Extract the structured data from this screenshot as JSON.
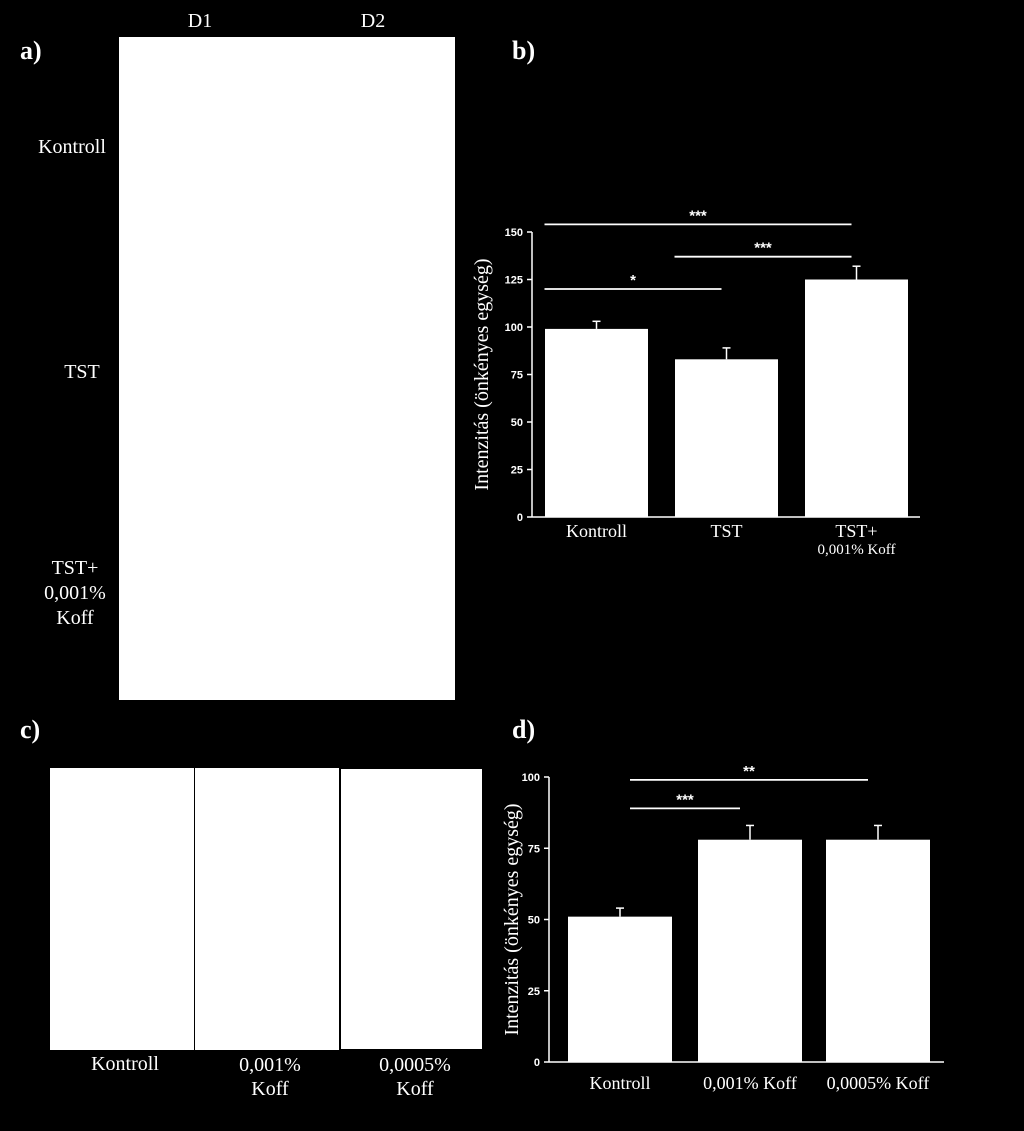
{
  "panel_a": {
    "letter": "a)",
    "columns": [
      "D1",
      "D2"
    ],
    "rows": [
      "Kontroll",
      "TST",
      "TST+\n0,001%\nKoff"
    ]
  },
  "panel_b": {
    "letter": "b)"
  },
  "panel_c": {
    "letter": "c)",
    "labels": [
      "Kontroll",
      "0,001%\nKoff",
      "0,0005%\nKoff"
    ]
  },
  "panel_d": {
    "letter": "d)"
  },
  "chart_data": [
    {
      "type": "bar",
      "panel": "b",
      "ylabel": "Intenzitás (önkényes egység)",
      "xlabel": "",
      "ylim": [
        0,
        150
      ],
      "yticks": [
        0,
        25,
        50,
        75,
        100,
        125,
        150
      ],
      "categories": [
        "Kontroll",
        "TST",
        "TST+\n0,001% Koff"
      ],
      "values": [
        99,
        83,
        125
      ],
      "errors": [
        4,
        6,
        7
      ],
      "significance": [
        {
          "from": 0,
          "to": 1,
          "label": "*",
          "y": 120
        },
        {
          "from": 1,
          "to": 2,
          "label": "***",
          "y": 137
        },
        {
          "from": 0,
          "to": 2,
          "label": "***",
          "y": 154
        }
      ],
      "bar_color": "#ffffff",
      "background": "#000000"
    },
    {
      "type": "bar",
      "panel": "d",
      "ylabel": "Intenzitás (önkényes egység)",
      "xlabel": "",
      "ylim": [
        0,
        100
      ],
      "yticks": [
        0,
        25,
        50,
        75,
        100
      ],
      "categories": [
        "Kontroll",
        "0,001% Koff",
        "0,0005% Koff"
      ],
      "values": [
        51,
        78,
        78
      ],
      "errors": [
        3,
        5,
        5
      ],
      "significance": [
        {
          "from": 0,
          "to": 1,
          "label": "***",
          "y": 89
        },
        {
          "from": 0,
          "to": 2,
          "label": "**",
          "y": 99
        }
      ],
      "bar_color": "#ffffff",
      "background": "#000000"
    }
  ]
}
